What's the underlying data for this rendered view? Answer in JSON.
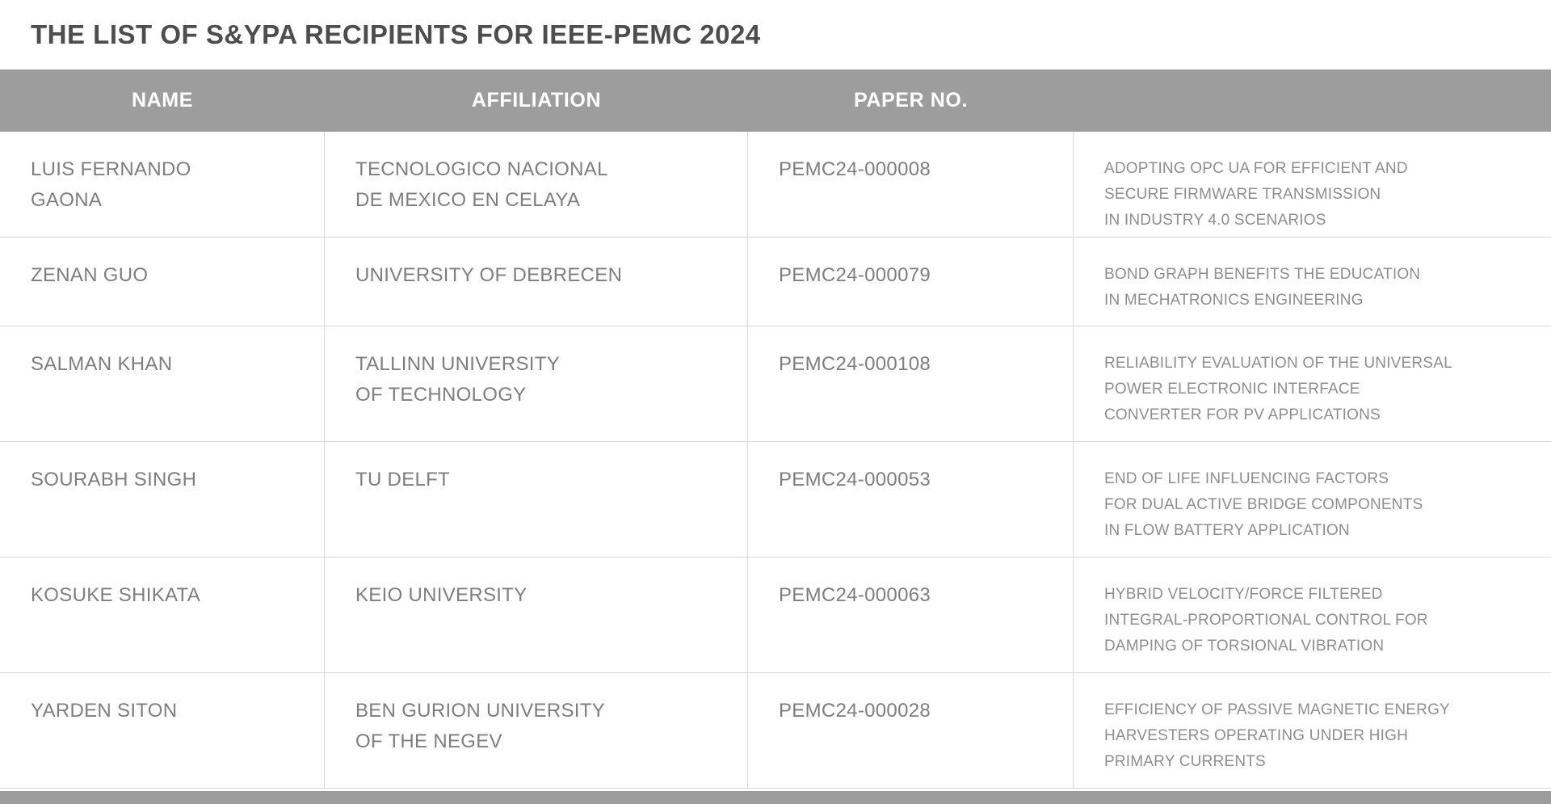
{
  "page": {
    "title": "THE LIST OF S&YPA RECIPIENTS FOR IEEE-PEMC 2024"
  },
  "colors": {
    "header_bg": "#9d9d9d",
    "header_text": "#ffffff",
    "title_text": "#4d4d4d",
    "body_text": "#7e7e7e",
    "paper_title_text": "#8e8e8e",
    "border": "#d8d8d8",
    "page_bg": "#ffffff"
  },
  "table": {
    "headers": [
      "NAME",
      "AFFILIATION",
      "PAPER NO."
    ],
    "rows": [
      {
        "name": "LUIS FERNANDO\nGAONA",
        "affiliation": "TECNOLOGICO NACIONAL\nDE MEXICO EN CELAYA",
        "paper_no": "PEMC24-000008",
        "paper_title": "ADOPTING OPC UA FOR EFFICIENT AND\nSECURE FIRMWARE TRANSMISSION\nIN INDUSTRY 4.0 SCENARIOS"
      },
      {
        "name": "ZENAN GUO",
        "affiliation": "UNIVERSITY OF DEBRECEN",
        "paper_no": "PEMC24-000079",
        "paper_title": "BOND GRAPH BENEFITS THE EDUCATION\nIN MECHATRONICS ENGINEERING"
      },
      {
        "name": "SALMAN KHAN",
        "affiliation": "TALLINN UNIVERSITY\nOF TECHNOLOGY",
        "paper_no": "PEMC24-000108",
        "paper_title": "RELIABILITY EVALUATION OF THE UNIVERSAL\nPOWER ELECTRONIC INTERFACE\nCONVERTER FOR PV APPLICATIONS"
      },
      {
        "name": "SOURABH SINGH",
        "affiliation": "TU DELFT",
        "paper_no": "PEMC24-000053",
        "paper_title": "END OF LIFE INFLUENCING FACTORS\nFOR DUAL ACTIVE BRIDGE COMPONENTS\nIN FLOW BATTERY APPLICATION"
      },
      {
        "name": "KOSUKE SHIKATA",
        "affiliation": "KEIO UNIVERSITY",
        "paper_no": "PEMC24-000063",
        "paper_title": "HYBRID VELOCITY/FORCE FILTERED\nINTEGRAL-PROPORTIONAL CONTROL FOR\nDAMPING OF TORSIONAL VIBRATION"
      },
      {
        "name": "YARDEN SITON",
        "affiliation": "BEN GURION UNIVERSITY\nOF THE NEGEV",
        "paper_no": "PEMC24-000028",
        "paper_title": "EFFICIENCY OF PASSIVE MAGNETIC ENERGY\nHARVESTERS OPERATING UNDER HIGH\nPRIMARY CURRENTS"
      }
    ]
  }
}
